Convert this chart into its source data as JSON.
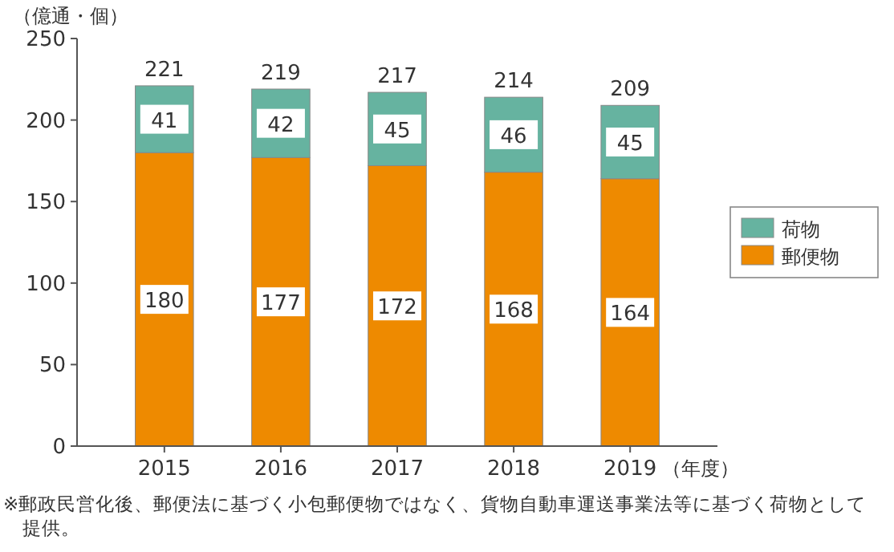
{
  "chart_data": {
    "type": "bar",
    "stacked": true,
    "ylabel": "（億通・個）",
    "xlabel": "（年度）",
    "categories": [
      "2015",
      "2016",
      "2017",
      "2018",
      "2019"
    ],
    "series": [
      {
        "name": "郵便物",
        "color": "#ee8a00",
        "values": [
          180,
          177,
          172,
          168,
          164
        ]
      },
      {
        "name": "荷物",
        "color": "#66b3a0",
        "values": [
          41,
          42,
          45,
          46,
          45
        ]
      }
    ],
    "totals": [
      "221",
      "219",
      "217",
      "214",
      "209"
    ],
    "data_labels": true,
    "ylim": [
      0,
      250
    ],
    "yticks": [
      0,
      50,
      100,
      150,
      200,
      250
    ],
    "grid": false,
    "legend": "right",
    "annotations": [
      "※郵政民営化後、郵便法に基づく小包郵便物ではなく、貨物自動車運送事業法等に基づく荷物として提供。"
    ]
  }
}
